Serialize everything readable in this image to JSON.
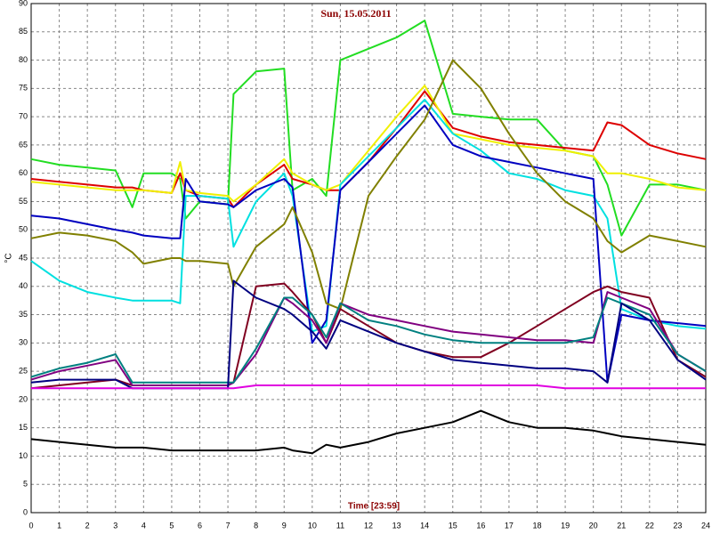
{
  "chart_data": {
    "type": "line",
    "title": "Sun, 15.05.2011",
    "x_label": "Time [23:59]",
    "y_label": "°C",
    "x": [
      0,
      1,
      2,
      3,
      3.6,
      4,
      5,
      5.3,
      5.5,
      6,
      7,
      7.2,
      8,
      9,
      9.3,
      10,
      10.5,
      11,
      12,
      13,
      14,
      15,
      16,
      17,
      18,
      19,
      20,
      20.5,
      21,
      22,
      23,
      24
    ],
    "xlim": [
      0,
      24
    ],
    "xticks": [
      0,
      1,
      2,
      3,
      4,
      5,
      6,
      7,
      8,
      9,
      10,
      11,
      12,
      13,
      14,
      15,
      16,
      17,
      18,
      19,
      20,
      21,
      22,
      23,
      24
    ],
    "ylim": [
      0,
      90
    ],
    "yticks": [
      0,
      5,
      10,
      15,
      20,
      25,
      30,
      35,
      40,
      45,
      50,
      55,
      60,
      65,
      70,
      75,
      80,
      85,
      90
    ],
    "grid": true,
    "series": [
      {
        "color": "#22dd22",
        "values": [
          62.5,
          61.5,
          61,
          60.5,
          54,
          60,
          60,
          59,
          52,
          55,
          54.5,
          74,
          78,
          78.5,
          57,
          59,
          56,
          80,
          82,
          84,
          87,
          70.5,
          70,
          69.5,
          69.5,
          64,
          63,
          58,
          49,
          58,
          58,
          57
        ]
      },
      {
        "color": "#dd0000",
        "values": [
          59,
          58.5,
          58,
          57.5,
          57.5,
          57,
          56.5,
          60,
          57,
          56,
          55.5,
          54,
          58,
          61.5,
          59,
          58,
          57,
          57,
          62,
          68,
          74.5,
          68,
          66.5,
          65.5,
          65,
          64.5,
          64,
          69,
          68.5,
          65,
          63.5,
          62.5
        ]
      },
      {
        "color": "#f0f000",
        "values": [
          58.5,
          58,
          57.5,
          57,
          57,
          57,
          56.5,
          62,
          57,
          56.5,
          56,
          55,
          58,
          62.5,
          60,
          58,
          57,
          58,
          64,
          70,
          75.5,
          67,
          66,
          65,
          64.5,
          64,
          63,
          60,
          60,
          59,
          57.5,
          57
        ]
      },
      {
        "color": "#00e0e0",
        "values": [
          44.5,
          41,
          39,
          38,
          37.5,
          37.5,
          37.5,
          37,
          56,
          56,
          55.5,
          47,
          55,
          60,
          56,
          32,
          33,
          58,
          63,
          68,
          73,
          67,
          64,
          60,
          59,
          57,
          56,
          52,
          36,
          34,
          33,
          32.5
        ]
      },
      {
        "color": "#0000c0",
        "values": [
          52.5,
          52,
          51,
          50,
          49.5,
          49,
          48.5,
          48.5,
          59,
          55,
          54.5,
          54,
          57,
          59,
          57.5,
          30,
          34,
          57,
          62,
          67,
          72,
          65,
          63,
          62,
          61,
          60,
          59,
          23,
          35,
          34,
          33.5,
          33
        ]
      },
      {
        "color": "#808000",
        "values": [
          48.5,
          49.5,
          49,
          48,
          46,
          44,
          45,
          45,
          44.5,
          44.5,
          44,
          40,
          47,
          51,
          54,
          46,
          37,
          36,
          56,
          63,
          69.5,
          80,
          75,
          67,
          60,
          55,
          52,
          48,
          46,
          49,
          48,
          47
        ]
      },
      {
        "color": "#800020",
        "values": [
          22,
          22.5,
          23,
          23.5,
          22.5,
          22.5,
          22.5,
          22.5,
          22.5,
          22.5,
          22.5,
          23,
          40,
          40.5,
          39,
          35,
          30,
          36,
          33,
          30,
          28.5,
          27.5,
          27.5,
          30,
          33,
          36,
          39,
          40,
          39,
          38,
          27,
          24
        ]
      },
      {
        "color": "#800080",
        "values": [
          23.5,
          25,
          26,
          27,
          22.5,
          22.5,
          22.5,
          22.5,
          22.5,
          22.5,
          22.5,
          23,
          28,
          38,
          37,
          34,
          30,
          37,
          35,
          34,
          33,
          32,
          31.5,
          31,
          30.5,
          30.5,
          30,
          39,
          38,
          36,
          28,
          25
        ]
      },
      {
        "color": "#008080",
        "values": [
          24,
          25.5,
          26.5,
          28,
          23,
          23,
          23,
          23,
          23,
          23,
          23,
          23,
          29,
          38,
          38,
          35,
          31,
          37,
          34,
          33,
          31.5,
          30.5,
          30,
          30,
          30,
          30,
          31,
          38,
          37,
          35,
          28,
          25
        ]
      },
      {
        "color": "#000080",
        "values": [
          23,
          23.5,
          23.5,
          23.5,
          22,
          22,
          22,
          22,
          22,
          22,
          22,
          41,
          38,
          36,
          35,
          32,
          29,
          34,
          32,
          30,
          28.5,
          27,
          26.5,
          26,
          25.5,
          25.5,
          25,
          23,
          37,
          34,
          27,
          23.5
        ]
      },
      {
        "color": "#e000e0",
        "values": [
          22,
          22,
          22,
          22,
          22,
          22,
          22,
          22,
          22,
          22,
          22,
          22,
          22.5,
          22.5,
          22.5,
          22.5,
          22.5,
          22.5,
          22.5,
          22.5,
          22.5,
          22.5,
          22.5,
          22.5,
          22.5,
          22,
          22,
          22,
          22,
          22,
          22,
          22
        ]
      },
      {
        "color": "#000000",
        "values": [
          13,
          12.5,
          12,
          11.5,
          11.5,
          11.5,
          11,
          11,
          11,
          11,
          11,
          11,
          11,
          11.5,
          11,
          10.5,
          12,
          11.5,
          12.5,
          14,
          15,
          16,
          18,
          16,
          15,
          15,
          14.5,
          14,
          13.5,
          13,
          12.5,
          12
        ]
      }
    ]
  }
}
